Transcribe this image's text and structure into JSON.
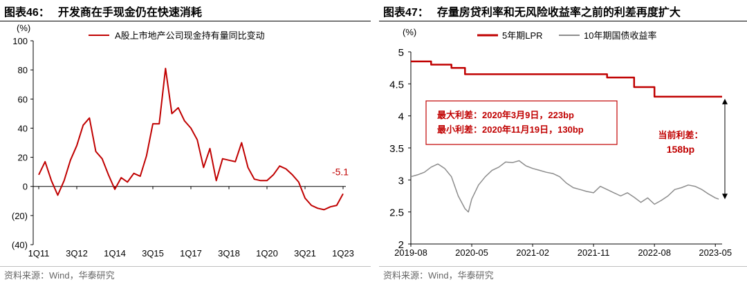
{
  "left": {
    "figure_number": "图表46：",
    "figure_title": "开发商在手现金仍在快速消耗",
    "source": "资料来源：Wind，华泰研究",
    "chart_data": {
      "type": "line",
      "unit_label": "(%)",
      "y_ticks": [
        "100",
        "80",
        "60",
        "40",
        "20",
        "0",
        "(20)",
        "(40)"
      ],
      "ylim": [
        -40,
        100
      ],
      "x_tick_labels": [
        "1Q11",
        "3Q12",
        "1Q14",
        "3Q15",
        "1Q17",
        "3Q18",
        "1Q20",
        "3Q21",
        "1Q23"
      ],
      "x_tick_index": [
        0,
        6,
        12,
        18,
        24,
        30,
        36,
        42,
        48
      ],
      "series": [
        {
          "name": "A股上市地产公司现金持有量同比变动",
          "color": "#c00000",
          "values": [
            8,
            17,
            4,
            -6,
            4,
            18,
            28,
            42,
            47,
            24,
            19,
            8,
            -2,
            6,
            3,
            9,
            7,
            21,
            43,
            43,
            81,
            50,
            54,
            45,
            40,
            32,
            13,
            26,
            4,
            19,
            18,
            17,
            30,
            13,
            5,
            4,
            4,
            8,
            14,
            12,
            8,
            3,
            -8,
            -13,
            -15,
            -16,
            -14,
            -13,
            -5
          ]
        }
      ],
      "annotation": "-5.1"
    }
  },
  "right": {
    "figure_number": "图表47：",
    "figure_title": "存量房贷利率和无风险收益率之前的利差再度扩大",
    "source": "资料来源：Wind，华泰研究",
    "chart_data": {
      "type": "line",
      "unit_label": "(%)",
      "y_ticks": [
        "5",
        "4.5",
        "4",
        "3.5",
        "3",
        "2.5",
        "2"
      ],
      "ylim": [
        2,
        5
      ],
      "x_tick_labels": [
        "2019-08",
        "2020-05",
        "2021-02",
        "2021-11",
        "2022-08",
        "2023-05"
      ],
      "x_tick_month_index": [
        0,
        9,
        18,
        27,
        36,
        45
      ],
      "x_range_months": [
        0,
        46
      ],
      "series": [
        {
          "name": "5年期LPR",
          "color": "#c00000",
          "type": "step",
          "points": [
            [
              0,
              4.85
            ],
            [
              3,
              4.85
            ],
            [
              3,
              4.8
            ],
            [
              6,
              4.8
            ],
            [
              6,
              4.75
            ],
            [
              8,
              4.75
            ],
            [
              8,
              4.65
            ],
            [
              29,
              4.65
            ],
            [
              29,
              4.6
            ],
            [
              33,
              4.6
            ],
            [
              33,
              4.45
            ],
            [
              36,
              4.45
            ],
            [
              36,
              4.3
            ],
            [
              46,
              4.3
            ]
          ]
        },
        {
          "name": "10年期国债收益率",
          "color": "#8c8c8c",
          "type": "line",
          "points": [
            [
              0,
              3.05
            ],
            [
              1,
              3.08
            ],
            [
              2,
              3.12
            ],
            [
              3,
              3.2
            ],
            [
              4,
              3.25
            ],
            [
              5,
              3.18
            ],
            [
              6,
              3.05
            ],
            [
              7,
              2.75
            ],
            [
              8,
              2.55
            ],
            [
              8.5,
              2.5
            ],
            [
              9,
              2.7
            ],
            [
              10,
              2.92
            ],
            [
              11,
              3.05
            ],
            [
              12,
              3.15
            ],
            [
              13,
              3.2
            ],
            [
              14,
              3.28
            ],
            [
              15,
              3.27
            ],
            [
              16,
              3.3
            ],
            [
              17,
              3.22
            ],
            [
              18,
              3.18
            ],
            [
              19,
              3.15
            ],
            [
              20,
              3.12
            ],
            [
              21,
              3.1
            ],
            [
              22,
              3.05
            ],
            [
              23,
              2.95
            ],
            [
              24,
              2.88
            ],
            [
              25,
              2.85
            ],
            [
              26,
              2.82
            ],
            [
              27,
              2.8
            ],
            [
              28,
              2.9
            ],
            [
              29,
              2.85
            ],
            [
              30,
              2.8
            ],
            [
              31,
              2.75
            ],
            [
              32,
              2.8
            ],
            [
              33,
              2.73
            ],
            [
              34,
              2.65
            ],
            [
              35,
              2.72
            ],
            [
              36,
              2.62
            ],
            [
              37,
              2.68
            ],
            [
              38,
              2.75
            ],
            [
              39,
              2.85
            ],
            [
              40,
              2.88
            ],
            [
              41,
              2.92
            ],
            [
              42,
              2.9
            ],
            [
              43,
              2.85
            ],
            [
              44,
              2.78
            ],
            [
              45,
              2.72
            ],
            [
              45.5,
              2.7
            ]
          ]
        }
      ],
      "annotation_box": {
        "line1": "最大利差：2020年3月9日，223bp",
        "line2": "最小利差：2020年11月19日，130bp"
      },
      "current_spread_label": "当前利差：",
      "current_spread_value": "158bp",
      "current_spread_from": 4.3,
      "current_spread_to": 2.72
    }
  }
}
